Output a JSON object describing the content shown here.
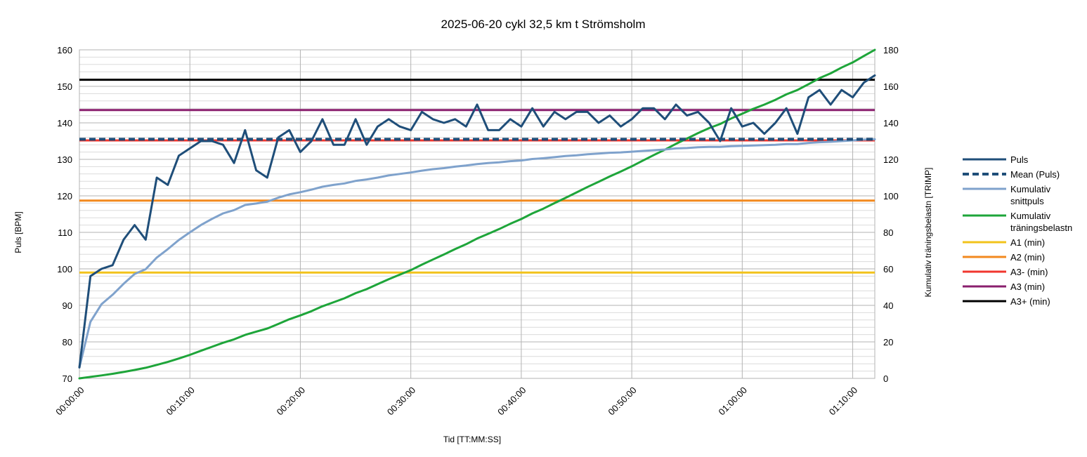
{
  "chart_data": {
    "type": "line",
    "title": "2025-06-20 cykl 32,5 km t Strömsholm",
    "xlabel": "Tid [TT:MM:SS]",
    "ylabel": "Puls [BPM]",
    "y2label": "Kumulativ träningsbelastn [TRIMP]",
    "ylim": [
      70,
      160
    ],
    "y2lim": [
      0,
      180
    ],
    "xlim_minutes": [
      0,
      72
    ],
    "y_ticks": [
      "70",
      "80",
      "90",
      "100",
      "110",
      "120",
      "130",
      "140",
      "150",
      "160"
    ],
    "y2_ticks": [
      "0",
      "20",
      "40",
      "60",
      "80",
      "100",
      "120",
      "140",
      "160",
      "180"
    ],
    "x_ticks": [
      "00:00:00",
      "00:10:00",
      "00:20:00",
      "00:30:00",
      "00:40:00",
      "00:50:00",
      "01:00:00",
      "01:10:00"
    ],
    "grid": true,
    "legend_position": "right",
    "x_minutes": [
      0,
      1,
      2,
      3,
      4,
      5,
      6,
      7,
      8,
      9,
      10,
      11,
      12,
      13,
      14,
      15,
      16,
      17,
      18,
      19,
      20,
      21,
      22,
      23,
      24,
      25,
      26,
      27,
      28,
      29,
      30,
      31,
      32,
      33,
      34,
      35,
      36,
      37,
      38,
      39,
      40,
      41,
      42,
      43,
      44,
      45,
      46,
      47,
      48,
      49,
      50,
      51,
      52,
      53,
      54,
      55,
      56,
      57,
      58,
      59,
      60,
      61,
      62,
      63,
      64,
      65,
      66,
      67,
      68,
      69,
      70,
      71,
      72
    ],
    "series": [
      {
        "name": "Puls",
        "axis": "left",
        "color": "#1f4e79",
        "width": 3,
        "dash": "",
        "values": [
          73,
          98,
          100,
          101,
          108,
          112,
          108,
          125,
          123,
          131,
          133,
          135,
          135,
          134,
          129,
          138,
          127,
          125,
          136,
          138,
          132,
          135,
          141,
          134,
          134,
          141,
          134,
          139,
          141,
          139,
          138,
          143,
          141,
          140,
          141,
          139,
          145,
          138,
          138,
          141,
          139,
          144,
          139,
          143,
          141,
          143,
          143,
          140,
          142,
          139,
          141,
          144,
          144,
          141,
          145,
          142,
          143,
          140,
          135,
          144,
          139,
          140,
          137,
          140,
          144,
          137,
          147,
          149,
          145,
          149,
          147,
          151,
          153
        ]
      },
      {
        "name": "Mean (Puls)",
        "axis": "left",
        "color": "#1f4e79",
        "width": 4,
        "dash": "9,5",
        "constant": 135.5
      },
      {
        "name": "Kumulativ snittpuls",
        "axis": "left",
        "color": "#7fa2cc",
        "width": 3,
        "dash": "",
        "values": [
          73,
          85.5,
          90.3,
          92.9,
          95.9,
          98.6,
          99.9,
          103.1,
          105.4,
          107.9,
          110.0,
          112.0,
          113.7,
          115.2,
          116.1,
          117.5,
          117.9,
          118.4,
          119.5,
          120.4,
          121.0,
          121.7,
          122.5,
          123.0,
          123.4,
          124.1,
          124.5,
          125.0,
          125.6,
          126.0,
          126.4,
          126.9,
          127.3,
          127.6,
          128.0,
          128.3,
          128.7,
          129.0,
          129.2,
          129.5,
          129.7,
          130.1,
          130.3,
          130.6,
          130.9,
          131.1,
          131.4,
          131.6,
          131.8,
          131.9,
          132.1,
          132.3,
          132.5,
          132.7,
          133.0,
          133.1,
          133.3,
          133.4,
          133.4,
          133.6,
          133.7,
          133.8,
          133.9,
          134.0,
          134.2,
          134.2,
          134.5,
          134.7,
          134.8,
          135.0,
          135.2,
          135.4,
          135.5
        ]
      },
      {
        "name": "Kumulativ träningsbelastn",
        "axis": "right",
        "color": "#1ea53a",
        "width": 3,
        "dash": "",
        "values": [
          0,
          0.8,
          1.6,
          2.5,
          3.5,
          4.6,
          5.8,
          7.4,
          9.0,
          10.9,
          12.9,
          15.1,
          17.3,
          19.5,
          21.4,
          23.8,
          25.6,
          27.3,
          29.8,
          32.4,
          34.5,
          36.8,
          39.5,
          41.7,
          43.9,
          46.7,
          48.9,
          51.6,
          54.3,
          56.8,
          59.3,
          62.3,
          65.1,
          67.9,
          70.8,
          73.5,
          76.6,
          79.2,
          81.8,
          84.7,
          87.3,
          90.4,
          93.0,
          96.0,
          98.9,
          101.9,
          104.9,
          107.7,
          110.6,
          113.3,
          116.2,
          119.3,
          122.4,
          125.3,
          128.5,
          131.4,
          134.4,
          137.1,
          139.4,
          142.4,
          145.0,
          147.7,
          150.0,
          152.6,
          155.6,
          158.0,
          161.2,
          164.5,
          167.1,
          170.3,
          173.1,
          176.6,
          180
        ]
      },
      {
        "name": "A1 (min)",
        "axis": "left",
        "color": "#f2c31b",
        "width": 3,
        "dash": "",
        "constant": 99
      },
      {
        "name": "A2 (min)",
        "axis": "left",
        "color": "#f2891e",
        "width": 3,
        "dash": "",
        "constant": 118.7
      },
      {
        "name": "A3- (min)",
        "axis": "left",
        "color": "#f0362e",
        "width": 3,
        "dash": "",
        "constant": 135.2
      },
      {
        "name": "A3 (min)",
        "axis": "left",
        "color": "#8a1f6e",
        "width": 3,
        "dash": "",
        "constant": 143.5
      },
      {
        "name": "A3+ (min)",
        "axis": "left",
        "color": "#000000",
        "width": 3,
        "dash": "",
        "constant": 151.8
      }
    ],
    "legend": [
      {
        "lines": [
          "Puls"
        ],
        "series": 0
      },
      {
        "lines": [
          "Mean (Puls)"
        ],
        "series": 1
      },
      {
        "lines": [
          "Kumulativ",
          "snittpuls"
        ],
        "series": 2
      },
      {
        "lines": [
          "Kumulativ",
          "träningsbelastn"
        ],
        "series": 3
      },
      {
        "lines": [
          "A1 (min)"
        ],
        "series": 4
      },
      {
        "lines": [
          "A2 (min)"
        ],
        "series": 5
      },
      {
        "lines": [
          "A3- (min)"
        ],
        "series": 6
      },
      {
        "lines": [
          "A3 (min)"
        ],
        "series": 7
      },
      {
        "lines": [
          "A3+ (min)"
        ],
        "series": 8
      }
    ]
  }
}
